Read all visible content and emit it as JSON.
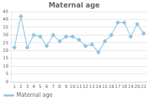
{
  "chart_data": {
    "type": "line",
    "title": "Maternal age",
    "x": [
      1,
      2,
      3,
      4,
      5,
      6,
      7,
      8,
      9,
      10,
      11,
      12,
      13,
      14,
      15,
      16,
      17,
      18,
      19,
      20,
      21
    ],
    "series": [
      {
        "name": "Maternal age",
        "color": "#8fc4e0",
        "marker": "diamond",
        "values": [
          22,
          42,
          22,
          30,
          29,
          23,
          30,
          26,
          29,
          29,
          27,
          23,
          24,
          19,
          26,
          30,
          38,
          38,
          29,
          37,
          31
        ]
      }
    ],
    "xlim": [
      0.5,
      21.5
    ],
    "xticks": [
      1,
      2,
      3,
      4,
      5,
      6,
      7,
      8,
      9,
      10,
      11,
      12,
      13,
      14,
      15,
      16,
      17,
      18,
      19,
      20,
      21
    ],
    "ylim": [
      0,
      45
    ],
    "yticks": [
      0,
      5,
      10,
      15,
      20,
      25,
      30,
      35,
      40,
      45
    ],
    "grid": "y",
    "legend": "bottom"
  }
}
